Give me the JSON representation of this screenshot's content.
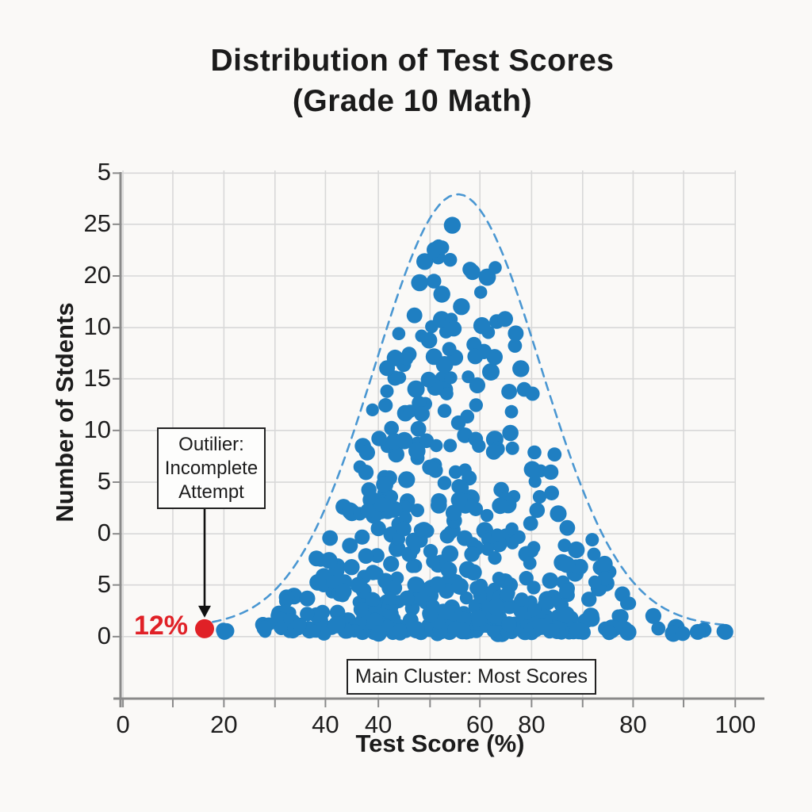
{
  "title": {
    "line1": "Distribution of Test Scores",
    "line2": "(Grade 10 Math)"
  },
  "axes": {
    "x_label": "Test Score (%)",
    "y_label": "Number of Stdents",
    "x_ticks": [
      {
        "pos": 0.004,
        "label": "0"
      },
      {
        "pos": 0.085,
        "label": ""
      },
      {
        "pos": 0.168,
        "label": "20"
      },
      {
        "pos": 0.251,
        "label": ""
      },
      {
        "pos": 0.333,
        "label": "40"
      },
      {
        "pos": 0.419,
        "label": "40"
      },
      {
        "pos": 0.503,
        "label": ""
      },
      {
        "pos": 0.584,
        "label": "60"
      },
      {
        "pos": 0.668,
        "label": "80"
      },
      {
        "pos": 0.751,
        "label": ""
      },
      {
        "pos": 0.833,
        "label": "80"
      },
      {
        "pos": 0.915,
        "label": ""
      },
      {
        "pos": 0.999,
        "label": "100"
      }
    ],
    "y_ticks": [
      {
        "pos": 0.005,
        "label": "5"
      },
      {
        "pos": 0.102,
        "label": "25"
      },
      {
        "pos": 0.2,
        "label": "20"
      },
      {
        "pos": 0.298,
        "label": "10"
      },
      {
        "pos": 0.395,
        "label": "15"
      },
      {
        "pos": 0.493,
        "label": "10"
      },
      {
        "pos": 0.591,
        "label": "5"
      },
      {
        "pos": 0.689,
        "label": "0"
      },
      {
        "pos": 0.786,
        "label": "5"
      },
      {
        "pos": 0.884,
        "label": "0"
      }
    ]
  },
  "annotations": {
    "outlier_box": {
      "lines": [
        "Outilier:",
        "Incomplete",
        "Attempt"
      ]
    },
    "outlier_value_label": "12%",
    "cluster_box": {
      "text": "Main Cluster: Most Scores"
    }
  },
  "colors": {
    "dot_blue": "#1f7fc2",
    "curve_blue": "#4a97d2",
    "outlier_red": "#e02127",
    "grid": "#d8d8d8",
    "axis": "#8a8a8a",
    "text": "#1c1c1c"
  },
  "chart_data": {
    "type": "scatter",
    "title": "Distribution of Test Scores (Grade 10 Math)",
    "xlabel": "Test Score (%)",
    "ylabel": "Number of Stdents",
    "x_axis_range": [
      0,
      100
    ],
    "x_tick_labels": [
      "0",
      "20",
      "40",
      "40",
      "60",
      "80",
      "80",
      "100"
    ],
    "y_tick_labels": [
      "5",
      "25",
      "20",
      "10",
      "15",
      "10",
      "5",
      "0",
      "5",
      "0"
    ],
    "grid": true,
    "description": "Dense bell-shaped cluster of blue dots spanning test scores ~20-100%, peaking near 55-60%, outlined by a dashed Gaussian envelope curve; density highest along the baseline. A single red outlier dot labeled 12% sits left of the cluster, annotated 'Outilier: Incomplete Attempt' with a downward arrow. A box labels the cluster 'Main Cluster: Most Scores'.",
    "envelope_curve": {
      "mu": 0.548,
      "sigma": 0.134,
      "base_fy": 0.866,
      "peak_fy": 0.045,
      "fx_min": 0.15,
      "fx_max": 0.99
    },
    "dots": {
      "count": 540,
      "seed": 7,
      "x_mu": 0.548,
      "x_sigma": 0.145,
      "x_min": 0.165,
      "x_max": 0.985,
      "base_fy": 0.875,
      "env_amp": 0.78,
      "env_sigma": 0.127,
      "bottom_bias": 2.1,
      "r_min": 8,
      "r_max": 11
    },
    "extra_baseline_dots": [
      {
        "fx": 0.938,
        "fy": 0.875,
        "r": 10
      },
      {
        "fx": 0.983,
        "fy": 0.875,
        "r": 10
      },
      {
        "fx": 0.169,
        "fy": 0.875,
        "r": 10
      }
    ],
    "outlier": {
      "label": "12%",
      "fx": 0.1366,
      "fy": 0.869,
      "r": 12
    },
    "arrow": {
      "fx": 0.1366,
      "fy_start": 0.639,
      "fy_end": 0.848
    }
  }
}
